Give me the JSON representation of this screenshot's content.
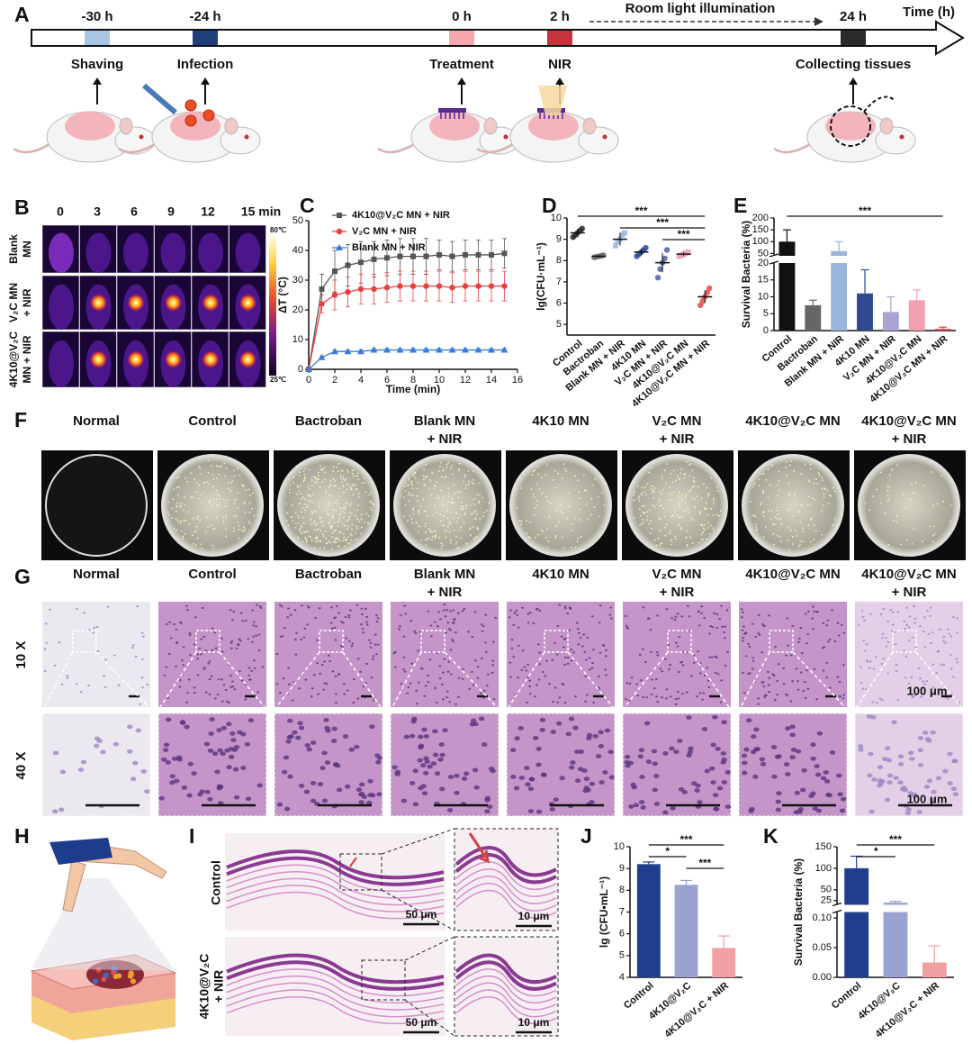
{
  "panels": [
    "A",
    "B",
    "C",
    "D",
    "E",
    "F",
    "G",
    "H",
    "I",
    "J",
    "K"
  ],
  "timeline": {
    "times": [
      "-30 h",
      "-24 h",
      "0 h",
      "2 h",
      "24 h"
    ],
    "events": [
      "Shaving",
      "Infection",
      "Treatment",
      "NIR",
      "Collecting tissues"
    ],
    "axis_label": "Time (h)",
    "interval": "Room light illumination"
  },
  "thermal": {
    "times": [
      "0",
      "3",
      "6",
      "9",
      "12",
      "15 min"
    ],
    "rows": [
      [
        "Blank",
        "MN"
      ],
      [
        "V₂C MN",
        "+ NIR"
      ],
      [
        "4K10@V₂C",
        "MN + NIR"
      ]
    ],
    "scale_max": "80℃",
    "scale_min": "25℃"
  },
  "plates": {
    "groups": [
      [
        "Normal"
      ],
      [
        "Control"
      ],
      [
        "Bactroban"
      ],
      [
        "Blank MN",
        "+ NIR"
      ],
      [
        "4K10 MN"
      ],
      [
        "V₂C MN",
        "+ NIR"
      ],
      [
        "4K10@V₂C MN"
      ],
      [
        "4K10@V₂C MN",
        "+ NIR"
      ]
    ]
  },
  "histology": {
    "groups": [
      [
        "Normal"
      ],
      [
        "Control"
      ],
      [
        "Bactroban"
      ],
      [
        "Blank MN",
        "+ NIR"
      ],
      [
        "4K10 MN"
      ],
      [
        "V₂C MN",
        "+ NIR"
      ],
      [
        "4K10@V₂C MN"
      ],
      [
        "4K10@V₂C MN",
        "+ NIR"
      ]
    ],
    "rows": [
      "10 X",
      "40 X"
    ],
    "scale_bar": "100 μm"
  },
  "skin_sections": {
    "rows": [
      [
        "Control"
      ],
      [
        "4K10@V₂C",
        "+ NIR"
      ]
    ],
    "scale_bars": [
      "50 μm",
      "10 μm"
    ]
  },
  "chart_data": [
    {
      "type": "line",
      "x_label": "Time (min)",
      "y_label": "ΔT (°C)",
      "legend": "top-left",
      "x": [
        0,
        1,
        2,
        3,
        4,
        5,
        6,
        7,
        8,
        9,
        10,
        11,
        12,
        13,
        14,
        15
      ],
      "xlim": [
        0,
        16
      ],
      "xticks": [
        0,
        2,
        4,
        6,
        8,
        10,
        12,
        14,
        16
      ],
      "ylim": [
        0,
        50
      ],
      "yticks": [
        0,
        10,
        20,
        30,
        40,
        50
      ],
      "series": [
        {
          "name": "4K10@V₂C MN + NIR",
          "color": "#555555",
          "marker": "square",
          "values": [
            0,
            27,
            33,
            35,
            36,
            37,
            37.5,
            38,
            38,
            38,
            38.5,
            38,
            38.5,
            38.5,
            38.5,
            39
          ],
          "errors": [
            0,
            5,
            7,
            7,
            7,
            6,
            6,
            6,
            6,
            6,
            5,
            5,
            5,
            5,
            5,
            5
          ]
        },
        {
          "name": "V₂C MN + NIR",
          "color": "#e84040",
          "marker": "circle",
          "values": [
            0,
            22,
            25,
            26,
            27,
            27,
            27.5,
            28,
            28,
            28,
            28,
            27.5,
            28,
            28,
            28,
            28
          ],
          "errors": [
            0,
            3,
            5,
            5,
            5,
            5,
            5,
            5,
            5,
            5,
            5,
            5,
            5,
            5,
            5,
            5
          ]
        },
        {
          "name": "Blank MN + NIR",
          "color": "#3a7dd8",
          "marker": "triangle",
          "values": [
            0,
            4,
            6,
            6,
            6,
            6.5,
            6.5,
            6.5,
            6.5,
            6.5,
            6.5,
            6.5,
            6.5,
            6.5,
            6.5,
            6.5
          ],
          "errors": [
            0,
            0.5,
            0.5,
            0.5,
            0.5,
            0.5,
            0.5,
            0.5,
            0.5,
            0.5,
            0.5,
            0.5,
            0.5,
            0.5,
            0.5,
            0.5
          ]
        }
      ]
    },
    {
      "type": "strip",
      "y_label": "lg(CFU·mL⁻¹)",
      "categories": [
        "Control",
        "Bactroban",
        "Blank MN + NIR",
        "4K10 MN",
        "V₂C MN + NIR",
        "4K10@V₂C MN",
        "4K10@V₂C MN + NIR"
      ],
      "values": [
        9.3,
        8.2,
        9.0,
        8.4,
        7.9,
        8.3,
        6.3
      ],
      "errors": [
        0.2,
        0.05,
        0.3,
        0.15,
        0.45,
        0.1,
        0.3
      ],
      "points": [
        [
          9.1,
          9.2,
          9.3,
          9.4,
          9.5
        ],
        [
          8.15,
          8.18,
          8.2,
          8.22,
          8.25
        ],
        [
          8.7,
          8.9,
          9.0,
          9.2,
          9.3
        ],
        [
          8.2,
          8.3,
          8.4,
          8.5,
          8.6
        ],
        [
          7.2,
          7.6,
          7.9,
          8.1,
          8.5
        ],
        [
          8.2,
          8.25,
          8.3,
          8.35,
          8.4
        ],
        [
          5.9,
          6.1,
          6.3,
          6.5,
          6.7
        ]
      ],
      "colors": [
        "#222222",
        "#666666",
        "#9ab4dc",
        "#2e4a90",
        "#4a5ea8",
        "#f0a0b0",
        "#e04848"
      ],
      "ylim": [
        4.5,
        10
      ],
      "yticks": [
        5,
        6,
        7,
        8,
        9,
        10
      ],
      "annotations": [
        {
          "text": "***",
          "from": 0,
          "to": 6
        },
        {
          "text": "***",
          "from": 2,
          "to": 6
        },
        {
          "text": "***",
          "from": 4,
          "to": 6
        }
      ]
    },
    {
      "type": "bar",
      "y_label": "Survival Bacteria (%)",
      "categories": [
        "Control",
        "Bactroban",
        "Blank MN + NIR",
        "4K10 MN",
        "V₂C MN + NIR",
        "4K10@V₂C MN",
        "4K10@V₂C MN + NIR"
      ],
      "values": [
        100,
        7.5,
        60,
        11,
        5.5,
        9,
        0.5
      ],
      "errors": [
        50,
        1.5,
        40,
        7,
        4.5,
        3,
        0.5
      ],
      "colors": [
        "#111111",
        "#666666",
        "#9ab4dc",
        "#2e4a90",
        "#a9a4d4",
        "#f0a0b0",
        "#e04040"
      ],
      "ylim": [
        0,
        200
      ],
      "ybreak": [
        20,
        40
      ],
      "yticks": [
        0,
        5,
        10,
        15,
        20,
        50,
        100,
        150,
        200
      ],
      "annotations": [
        {
          "text": "***",
          "from": 0,
          "to": 6
        }
      ]
    },
    {
      "type": "bar",
      "y_label": "lg (CFU•mL⁻¹)",
      "categories": [
        "Control",
        "4K10@V₂C",
        "4K10@V₂C + NIR"
      ],
      "values": [
        9.2,
        8.25,
        5.35
      ],
      "errors": [
        0.1,
        0.2,
        0.55
      ],
      "colors": [
        "#1f3f8c",
        "#9aa3d0",
        "#f0a0a0"
      ],
      "ylim": [
        4,
        10
      ],
      "yticks": [
        4,
        5,
        6,
        7,
        8,
        9,
        10
      ],
      "annotations": [
        {
          "text": "***",
          "from": 0,
          "to": 2
        },
        {
          "text": "*",
          "from": 0,
          "to": 1
        },
        {
          "text": "***",
          "from": 1,
          "to": 2
        }
      ]
    },
    {
      "type": "bar",
      "y_label": "Survival Bacteria (%)",
      "categories": [
        "Control",
        "4K10@V₂C",
        "4K10@V₂C + NIR"
      ],
      "values": [
        100,
        20,
        0.025
      ],
      "errors": [
        28,
        3,
        0.028
      ],
      "colors": [
        "#1f3f8c",
        "#9aa3d0",
        "#f0a0a0"
      ],
      "ylim": [
        0,
        150
      ],
      "ybreak": [
        0.11,
        15
      ],
      "yticks": [
        {
          "value": 0,
          "label": "0.00"
        },
        {
          "value": 0.05,
          "label": "0.05"
        },
        {
          "value": 0.1,
          "label": "0.10"
        },
        25,
        50,
        100,
        150
      ],
      "annotations": [
        {
          "text": "***",
          "from": 0,
          "to": 2
        },
        {
          "text": "*",
          "from": 0,
          "to": 1
        }
      ]
    }
  ]
}
